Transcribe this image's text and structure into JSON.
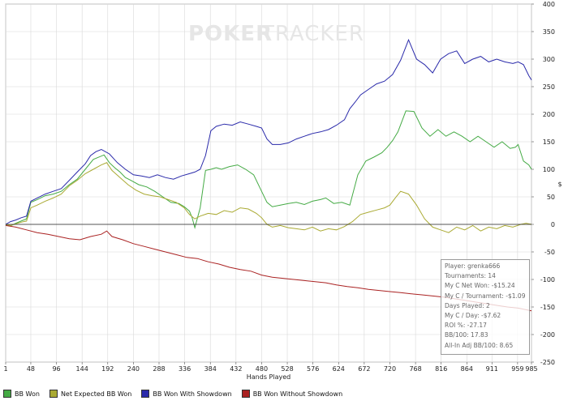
{
  "watermark": {
    "part1": "POKER",
    "part2": "TRACKER"
  },
  "chart_data": {
    "type": "line",
    "title": "",
    "xlabel": "Hands Played",
    "ylabel": "$",
    "xlim": [
      1,
      985
    ],
    "ylim": [
      -250,
      400
    ],
    "x_ticks": [
      1,
      48,
      96,
      144,
      192,
      240,
      288,
      336,
      384,
      432,
      480,
      528,
      576,
      624,
      672,
      720,
      768,
      816,
      864,
      911,
      959,
      985
    ],
    "y_ticks": [
      -250,
      -200,
      -150,
      -100,
      -50,
      0,
      50,
      100,
      150,
      200,
      250,
      300,
      350,
      400
    ],
    "grid": true,
    "series": [
      {
        "name": "BB Won",
        "color": "#44aa44",
        "x": [
          1,
          10,
          20,
          30,
          40,
          48,
          60,
          75,
          90,
          105,
          120,
          135,
          150,
          165,
          185,
          195,
          205,
          215,
          225,
          235,
          250,
          265,
          280,
          295,
          310,
          325,
          335,
          345,
          350,
          355,
          365,
          375,
          385,
          395,
          405,
          420,
          435,
          450,
          465,
          480,
          490,
          500,
          515,
          530,
          545,
          560,
          575,
          590,
          600,
          615,
          630,
          645,
          660,
          675,
          690,
          705,
          715,
          725,
          735,
          750,
          765,
          780,
          795,
          810,
          825,
          840,
          855,
          870,
          885,
          900,
          915,
          930,
          945,
          955,
          960,
          970,
          980,
          985
        ],
        "y": [
          0,
          -3,
          2,
          6,
          10,
          40,
          45,
          52,
          55,
          60,
          72,
          82,
          100,
          118,
          126,
          112,
          103,
          95,
          85,
          80,
          72,
          68,
          60,
          50,
          40,
          38,
          32,
          24,
          12,
          -6,
          30,
          98,
          100,
          103,
          100,
          105,
          108,
          100,
          90,
          60,
          40,
          32,
          35,
          38,
          40,
          36,
          42,
          45,
          48,
          38,
          40,
          35,
          90,
          115,
          122,
          130,
          140,
          152,
          168,
          206,
          205,
          175,
          160,
          172,
          160,
          168,
          160,
          150,
          160,
          150,
          140,
          150,
          138,
          140,
          145,
          115,
          108,
          100
        ]
      },
      {
        "name": "Net Expected BB Won",
        "color": "#aaaa33",
        "x": [
          1,
          10,
          20,
          30,
          40,
          48,
          60,
          75,
          90,
          105,
          120,
          135,
          150,
          165,
          180,
          190,
          200,
          215,
          230,
          245,
          260,
          275,
          290,
          305,
          320,
          335,
          345,
          355,
          365,
          380,
          395,
          410,
          425,
          440,
          455,
          470,
          480,
          490,
          500,
          515,
          530,
          545,
          560,
          575,
          590,
          605,
          620,
          635,
          650,
          665,
          680,
          695,
          710,
          720,
          730,
          740,
          755,
          770,
          785,
          800,
          815,
          830,
          845,
          860,
          875,
          890,
          905,
          920,
          935,
          950,
          965,
          975,
          985
        ],
        "y": [
          0,
          -2,
          1,
          4,
          6,
          30,
          35,
          42,
          48,
          55,
          70,
          80,
          92,
          100,
          108,
          112,
          98,
          85,
          72,
          62,
          55,
          52,
          50,
          45,
          40,
          30,
          18,
          10,
          15,
          20,
          18,
          25,
          22,
          30,
          28,
          20,
          12,
          0,
          -5,
          -2,
          -6,
          -8,
          -10,
          -5,
          -12,
          -8,
          -10,
          -4,
          5,
          18,
          22,
          26,
          30,
          35,
          48,
          60,
          55,
          35,
          10,
          -5,
          -10,
          -15,
          -5,
          -10,
          -2,
          -12,
          -5,
          -8,
          -2,
          -5,
          0,
          2,
          0
        ]
      },
      {
        "name": "BB Won With Showdown",
        "color": "#2a2aaa",
        "x": [
          1,
          10,
          20,
          30,
          40,
          48,
          60,
          75,
          90,
          105,
          120,
          135,
          150,
          160,
          170,
          180,
          195,
          210,
          225,
          240,
          255,
          270,
          285,
          300,
          315,
          330,
          345,
          355,
          365,
          375,
          385,
          395,
          410,
          425,
          440,
          455,
          470,
          480,
          490,
          500,
          515,
          530,
          545,
          560,
          575,
          590,
          605,
          620,
          635,
          645,
          655,
          665,
          680,
          695,
          710,
          725,
          740,
          755,
          770,
          785,
          800,
          815,
          830,
          845,
          860,
          875,
          890,
          905,
          920,
          935,
          950,
          960,
          970,
          980,
          985
        ],
        "y": [
          0,
          5,
          8,
          12,
          15,
          42,
          48,
          55,
          60,
          65,
          80,
          95,
          110,
          125,
          132,
          136,
          128,
          112,
          100,
          90,
          88,
          85,
          90,
          85,
          82,
          88,
          92,
          95,
          100,
          125,
          170,
          178,
          182,
          180,
          186,
          182,
          178,
          175,
          155,
          145,
          145,
          148,
          155,
          160,
          165,
          168,
          172,
          180,
          190,
          210,
          222,
          235,
          245,
          255,
          260,
          272,
          298,
          335,
          300,
          290,
          275,
          300,
          310,
          315,
          292,
          300,
          305,
          295,
          300,
          295,
          292,
          295,
          290,
          270,
          262
        ]
      },
      {
        "name": "BB Won Without Showdown",
        "color": "#aa2222",
        "x": [
          1,
          20,
          40,
          60,
          80,
          100,
          120,
          140,
          160,
          180,
          190,
          200,
          220,
          240,
          260,
          280,
          300,
          320,
          340,
          360,
          380,
          400,
          420,
          440,
          460,
          480,
          500,
          520,
          540,
          560,
          580,
          600,
          620,
          640,
          660,
          680,
          700,
          720,
          740,
          760,
          780,
          800,
          820,
          840,
          860,
          880,
          900,
          920,
          940,
          960,
          975,
          985
        ],
        "y": [
          -2,
          -5,
          -10,
          -15,
          -18,
          -22,
          -26,
          -28,
          -22,
          -18,
          -12,
          -22,
          -28,
          -35,
          -40,
          -45,
          -50,
          -55,
          -60,
          -62,
          -68,
          -72,
          -78,
          -82,
          -85,
          -92,
          -96,
          -98,
          -100,
          -102,
          -104,
          -106,
          -110,
          -113,
          -115,
          -118,
          -120,
          -122,
          -124,
          -126,
          -128,
          -130,
          -132,
          -135,
          -138,
          -141,
          -144,
          -147,
          -150,
          -152,
          -155,
          -157
        ]
      }
    ],
    "legend_position": "bottom-left",
    "axis_line_y": 0
  },
  "legend": [
    {
      "label": "BB Won",
      "color": "#44aa44"
    },
    {
      "label": "Net Expected BB Won",
      "color": "#aaaa33"
    },
    {
      "label": "BB Won With Showdown",
      "color": "#2a2aaa"
    },
    {
      "label": "BB Won Without Showdown",
      "color": "#aa2222"
    }
  ],
  "stats": {
    "player": "Player: grenka666",
    "tournaments": "Tournaments: 14",
    "net_won": "My C Net Won: -$15.24",
    "per_tournament": "My C / Tournament: -$1.09",
    "days_played": "Days Played: 2",
    "per_day": "My C / Day: -$7.62",
    "roi": "ROI %: -27.17",
    "bb100": "BB/100: 17.83",
    "allin_bb100": "All-In Adj BB/100: 8.65"
  }
}
